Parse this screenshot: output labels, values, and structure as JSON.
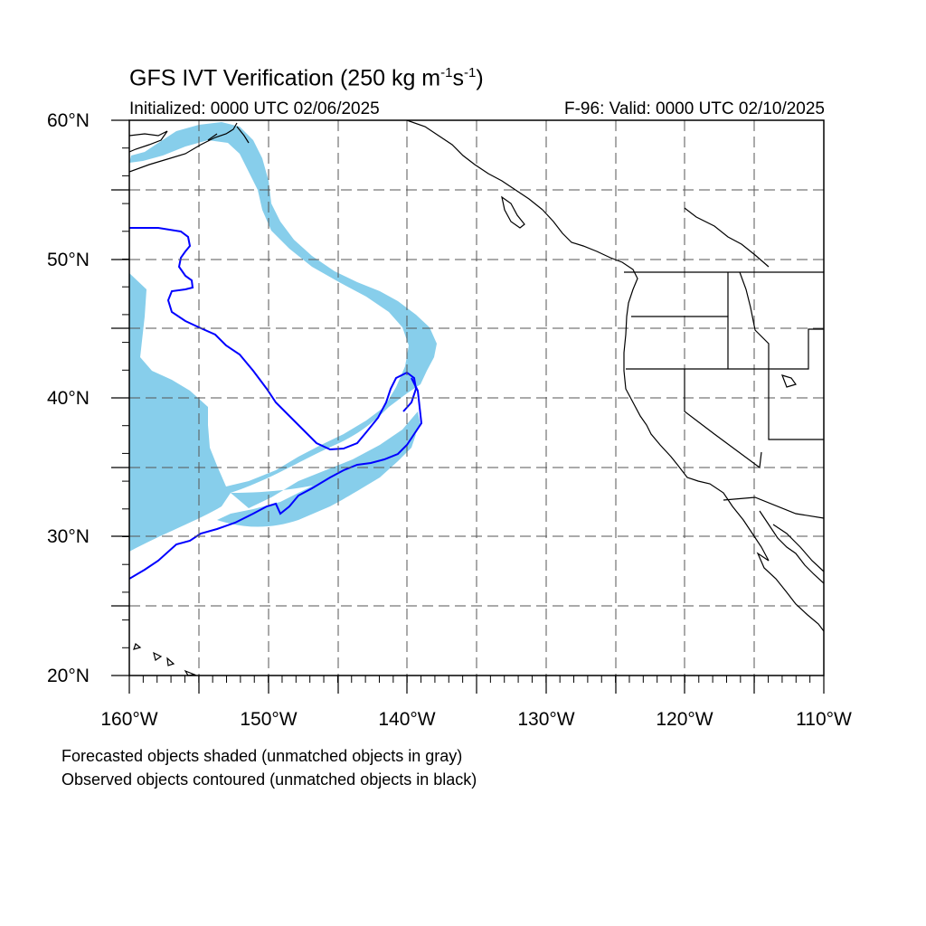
{
  "title": {
    "prefix": "GFS IVT Verification (250 kg m",
    "sup1": "-1",
    "mid": "s",
    "sup2": "-1",
    "suffix": ")"
  },
  "initialized": "Initialized: 0000 UTC 02/06/2025",
  "valid": "F-96: Valid: 0000 UTC 02/10/2025",
  "lat_labels": [
    "60°N",
    "50°N",
    "40°N",
    "30°N",
    "20°N"
  ],
  "lon_labels": [
    "160°W",
    "150°W",
    "140°W",
    "130°W",
    "120°W",
    "110°W"
  ],
  "footnotes": [
    "Forecasted objects shaded (unmatched objects in gray)",
    "Observed objects contoured (unmatched objects in black)"
  ],
  "colors": {
    "forecast_fill": "#87ceeb",
    "observed_contour": "#0000ff",
    "coastline": "#000000",
    "grid": "#555555"
  },
  "map_extent": {
    "lon": [
      -160,
      -110
    ],
    "lat": [
      20,
      60
    ]
  }
}
